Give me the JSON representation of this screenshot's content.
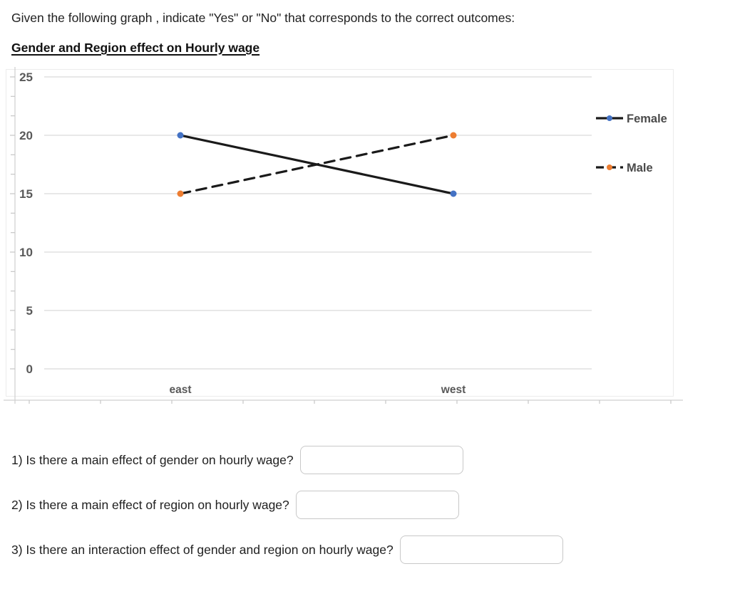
{
  "page": {
    "prompt": "Given the following graph , indicate \"Yes\" or \"No\" that corresponds to the correct outcomes:",
    "graph_title": "Gender and Region effect on Hourly wage"
  },
  "chart_data": {
    "type": "line",
    "title": "",
    "categories": [
      "east",
      "west"
    ],
    "series": [
      {
        "name": "Female",
        "values": [
          20,
          15
        ],
        "line_style": "solid",
        "line_color": "#1a1a1a",
        "marker_color": "#4472c4"
      },
      {
        "name": "Male",
        "values": [
          15,
          20
        ],
        "line_style": "dashed",
        "line_color": "#1a1a1a",
        "marker_color": "#ed7d31"
      }
    ],
    "xlabel": "",
    "ylabel": "",
    "ylim": [
      0,
      25
    ],
    "ytick_step": 5,
    "yticks": [
      0,
      5,
      10,
      15,
      20,
      25
    ],
    "grid": true,
    "legend_position": "right",
    "gridline_color": "#d9d9d9",
    "axis_line_color": "#cfcfcf",
    "tick_color": "#c6c6c6",
    "axis_label_color": "#595959",
    "legend_text_color": "#4a4a4a"
  },
  "questions": [
    {
      "label": "1) Is there a main effect of gender on hourly wage?",
      "value": ""
    },
    {
      "label": "2) Is there a main effect of region on hourly wage?",
      "value": ""
    },
    {
      "label": "3) Is there an interaction effect of gender and region on hourly wage?",
      "value": ""
    }
  ]
}
